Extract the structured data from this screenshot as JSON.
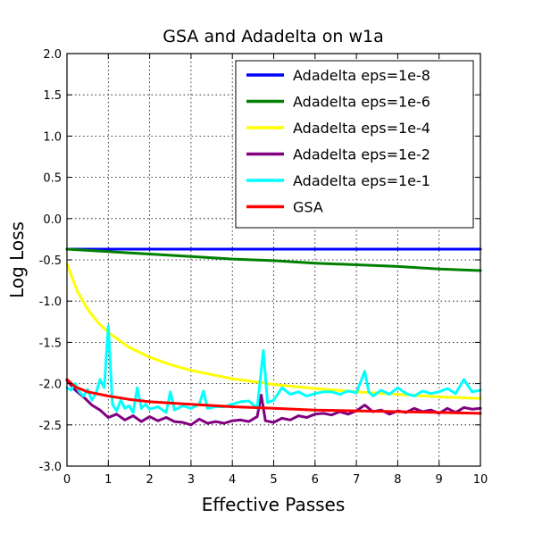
{
  "chart_data": {
    "type": "line",
    "title": "GSA and Adadelta on w1a",
    "xlabel": "Effective Passes",
    "ylabel": "Log Loss",
    "xlim": [
      0,
      10
    ],
    "ylim": [
      -3.0,
      2.0
    ],
    "xticks": [
      0,
      1,
      2,
      3,
      4,
      5,
      6,
      7,
      8,
      9,
      10
    ],
    "yticks": [
      -3.0,
      -2.5,
      -2.0,
      -1.5,
      -1.0,
      -0.5,
      0.0,
      0.5,
      1.0,
      1.5,
      2.0
    ],
    "xtick_labels": [
      "0",
      "1",
      "2",
      "3",
      "4",
      "5",
      "6",
      "7",
      "8",
      "9",
      "10"
    ],
    "ytick_labels": [
      "-3.0",
      "-2.5",
      "-2.0",
      "-1.5",
      "-1.0",
      "-0.5",
      "0.0",
      "0.5",
      "1.0",
      "1.5",
      "2.0"
    ],
    "grid": true,
    "legend_position": "top-right",
    "series": [
      {
        "name": "Adadelta eps=1e-8",
        "color": "#0000ff",
        "x": [
          0,
          2,
          4,
          6,
          8,
          10
        ],
        "y": [
          -0.37,
          -0.37,
          -0.37,
          -0.37,
          -0.37,
          -0.37
        ]
      },
      {
        "name": "Adadelta eps=1e-6",
        "color": "#008000",
        "x": [
          0,
          1,
          2,
          3,
          4,
          5,
          6,
          7,
          8,
          9,
          10
        ],
        "y": [
          -0.37,
          -0.4,
          -0.43,
          -0.46,
          -0.49,
          -0.51,
          -0.54,
          -0.56,
          -0.58,
          -0.61,
          -0.63
        ]
      },
      {
        "name": "Adadelta eps=1e-4",
        "color": "#ffff00",
        "x": [
          0,
          0.25,
          0.5,
          0.75,
          1,
          1.5,
          2,
          2.5,
          3,
          4,
          5,
          6,
          7,
          8,
          9,
          10
        ],
        "y": [
          -0.55,
          -0.88,
          -1.1,
          -1.26,
          -1.38,
          -1.56,
          -1.68,
          -1.77,
          -1.84,
          -1.94,
          -2.01,
          -2.06,
          -2.1,
          -2.13,
          -2.16,
          -2.18
        ]
      },
      {
        "name": "Adadelta eps=1e-2",
        "color": "#800080",
        "x": [
          0,
          0.2,
          0.4,
          0.6,
          0.8,
          1,
          1.2,
          1.4,
          1.6,
          1.8,
          2,
          2.2,
          2.4,
          2.6,
          2.8,
          3,
          3.2,
          3.4,
          3.6,
          3.8,
          4,
          4.2,
          4.4,
          4.6,
          4.7,
          4.8,
          5,
          5.2,
          5.4,
          5.6,
          5.8,
          6,
          6.2,
          6.4,
          6.6,
          6.8,
          7,
          7.2,
          7.4,
          7.6,
          7.8,
          8,
          8.2,
          8.4,
          8.6,
          8.8,
          9,
          9.2,
          9.4,
          9.6,
          9.8,
          10
        ],
        "y": [
          -1.96,
          -2.08,
          -2.16,
          -2.26,
          -2.32,
          -2.41,
          -2.37,
          -2.44,
          -2.39,
          -2.46,
          -2.4,
          -2.45,
          -2.41,
          -2.46,
          -2.47,
          -2.5,
          -2.43,
          -2.48,
          -2.46,
          -2.48,
          -2.45,
          -2.44,
          -2.46,
          -2.4,
          -2.14,
          -2.45,
          -2.47,
          -2.42,
          -2.44,
          -2.39,
          -2.41,
          -2.37,
          -2.36,
          -2.38,
          -2.34,
          -2.37,
          -2.33,
          -2.26,
          -2.34,
          -2.32,
          -2.37,
          -2.33,
          -2.35,
          -2.3,
          -2.34,
          -2.32,
          -2.36,
          -2.3,
          -2.35,
          -2.29,
          -2.31,
          -2.3
        ]
      },
      {
        "name": "Adadelta eps=1e-1",
        "color": "#00ffff",
        "x": [
          0,
          0.1,
          0.2,
          0.3,
          0.4,
          0.5,
          0.6,
          0.7,
          0.8,
          0.9,
          1,
          1.1,
          1.2,
          1.3,
          1.4,
          1.5,
          1.6,
          1.7,
          1.8,
          1.9,
          2,
          2.2,
          2.4,
          2.5,
          2.6,
          2.8,
          3,
          3.2,
          3.3,
          3.4,
          3.6,
          3.8,
          4,
          4.2,
          4.4,
          4.6,
          4.75,
          4.85,
          5,
          5.2,
          5.4,
          5.6,
          5.8,
          6,
          6.2,
          6.4,
          6.6,
          6.8,
          7,
          7.2,
          7.3,
          7.4,
          7.6,
          7.8,
          8,
          8.2,
          8.4,
          8.6,
          8.8,
          9,
          9.2,
          9.4,
          9.6,
          9.8,
          10
        ],
        "y": [
          -2.05,
          -2.08,
          -2.0,
          -2.1,
          -2.15,
          -2.07,
          -2.2,
          -2.12,
          -1.95,
          -2.05,
          -1.3,
          -2.25,
          -2.33,
          -2.2,
          -2.3,
          -2.27,
          -2.35,
          -2.05,
          -2.3,
          -2.25,
          -2.31,
          -2.28,
          -2.35,
          -2.1,
          -2.32,
          -2.27,
          -2.3,
          -2.25,
          -2.09,
          -2.3,
          -2.28,
          -2.28,
          -2.25,
          -2.22,
          -2.21,
          -2.3,
          -1.6,
          -2.23,
          -2.2,
          -2.05,
          -2.13,
          -2.1,
          -2.15,
          -2.12,
          -2.1,
          -2.1,
          -2.13,
          -2.09,
          -2.11,
          -1.85,
          -2.1,
          -2.15,
          -2.08,
          -2.13,
          -2.05,
          -2.12,
          -2.15,
          -2.09,
          -2.12,
          -2.1,
          -2.06,
          -2.12,
          -1.95,
          -2.1,
          -2.08
        ]
      },
      {
        "name": "GSA",
        "color": "#ff0000",
        "x": [
          0,
          0.2,
          0.5,
          1,
          1.5,
          2,
          3,
          4,
          5,
          6,
          7,
          8,
          9,
          10
        ],
        "y": [
          -1.95,
          -2.04,
          -2.1,
          -2.15,
          -2.19,
          -2.22,
          -2.25,
          -2.28,
          -2.3,
          -2.32,
          -2.33,
          -2.34,
          -2.35,
          -2.36
        ]
      }
    ]
  }
}
